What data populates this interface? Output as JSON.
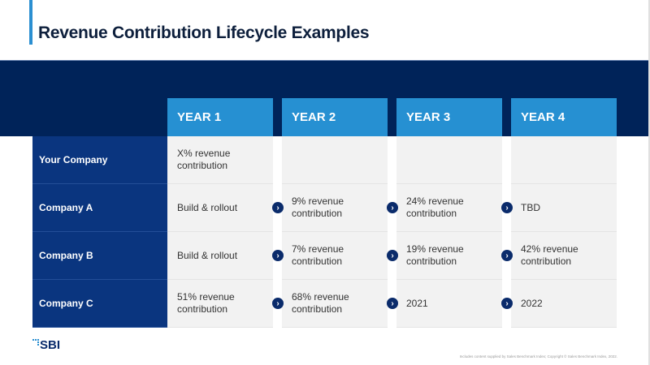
{
  "title": "Revenue Contribution Lifecycle Examples",
  "columns": [
    "YEAR 1",
    "YEAR 2",
    "YEAR 3",
    "YEAR 4"
  ],
  "rows": [
    {
      "label": "Your Company",
      "cells": [
        "X% revenue contribution",
        "",
        "",
        ""
      ]
    },
    {
      "label": "Company A",
      "cells": [
        "Build & rollout",
        "9% revenue contribution",
        "24% revenue contribution",
        "TBD"
      ]
    },
    {
      "label": "Company B",
      "cells": [
        "Build & rollout",
        "7% revenue contribution",
        "19% revenue contribution",
        "42% revenue contribution"
      ]
    },
    {
      "label": "Company C",
      "cells": [
        "51% revenue contribution",
        "68% revenue contribution",
        "2021",
        "2022"
      ]
    }
  ],
  "logo": "SBI",
  "footer": "Includes content supplied by Sales Benchmark Index; Copyright © Sales Benchmark Index, 2022.",
  "colors": {
    "navy": "#002359",
    "blue": "#2690d2",
    "label_navy": "#0a357f"
  }
}
